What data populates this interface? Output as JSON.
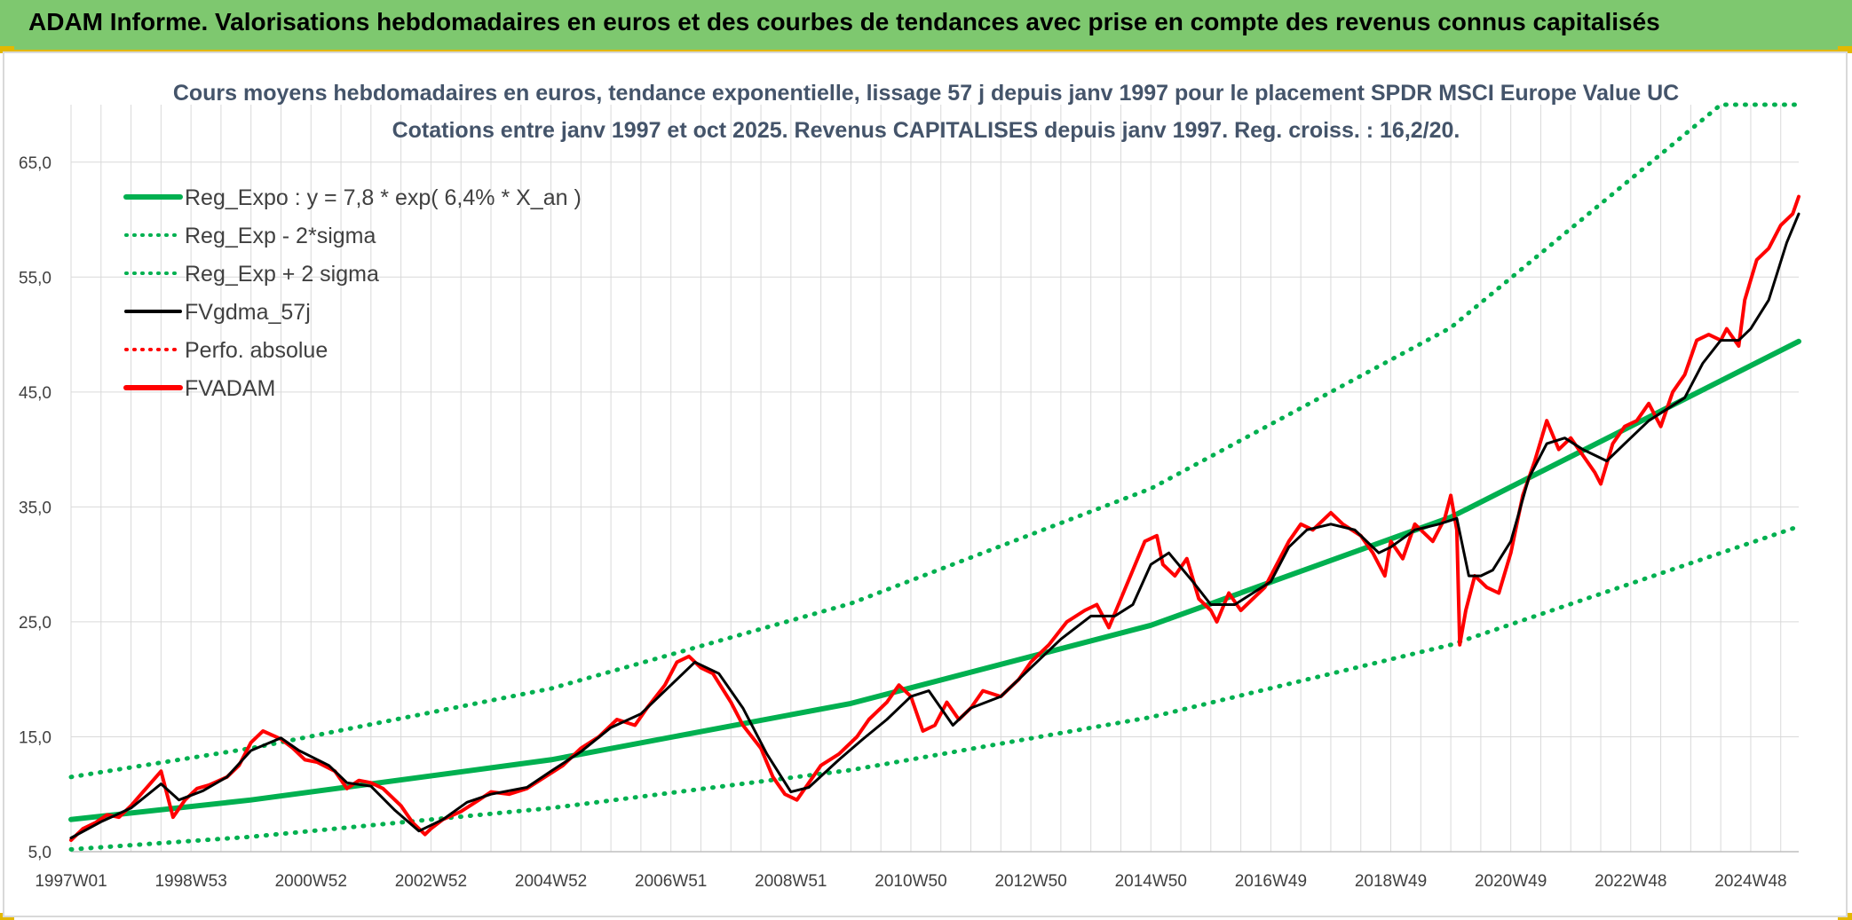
{
  "header": {
    "title": "ADAM Informe. Valorisations hebdomadaires en euros et des courbes de tendances avec prise en compte des revenus connus capitalisés"
  },
  "colors": {
    "header_bg": "#7ec86f",
    "accent_yellow": "#e4b800",
    "trend_green": "#00b050",
    "price_red": "#ff0000",
    "average_black": "#000000",
    "grid": "#d9d9d9",
    "title_text": "#44546a"
  },
  "chart_data": {
    "type": "line",
    "title": "Cours moyens hebdomadaires en euros, tendance exponentielle, lissage 57 j depuis janv 1997 pour le placement SPDR MSCI Europe Value UC",
    "subtitle": "Cotations entre janv 1997 et oct 2025. Revenus CAPITALISES depuis janv 1997. Reg. croiss. : 16,2/20.",
    "xlabel": "",
    "ylabel": "",
    "x_range": [
      1997.0,
      2025.8
    ],
    "ylim": [
      5,
      70
    ],
    "y_ticks": [
      "5,0",
      "15,0",
      "25,0",
      "35,0",
      "45,0",
      "55,0",
      "65,0"
    ],
    "x_ticks": [
      "1997W01",
      "1998W53",
      "2000W52",
      "2002W52",
      "2004W52",
      "2006W51",
      "2008W51",
      "2010W50",
      "2012W50",
      "2014W50",
      "2016W49",
      "2018W49",
      "2020W49",
      "2022W48",
      "2024W48"
    ],
    "x_tick_years": [
      1997.0,
      1999.0,
      2001.0,
      2003.0,
      2005.0,
      2007.0,
      2009.0,
      2011.0,
      2013.0,
      2015.0,
      2017.0,
      2019.0,
      2021.0,
      2023.0,
      2025.0
    ],
    "grid": "vertical and horizontal",
    "legend_position": "top-left",
    "regression": {
      "a": 7.8,
      "rate": 0.064
    },
    "series": [
      {
        "name": "Reg_Expo : y = 7,8 * exp( 6,4% *  X_an )",
        "style": "solid",
        "color": "#00b050",
        "x": [
          1997.0,
          2000.0,
          2005.0,
          2010.0,
          2015.0,
          2020.0,
          2025.8
        ],
        "values": [
          7.8,
          9.5,
          13.0,
          17.9,
          24.7,
          34.1,
          49.4
        ]
      },
      {
        "name": "Reg_Exp - 2*sigma",
        "style": "dotted",
        "color": "#00b050",
        "x": [
          1997.0,
          2000.0,
          2005.0,
          2010.0,
          2015.0,
          2020.0,
          2025.8
        ],
        "values": [
          5.2,
          6.3,
          8.8,
          12.1,
          16.7,
          23.0,
          33.3
        ]
      },
      {
        "name": "Reg_Exp + 2 sigma",
        "style": "dotted",
        "color": "#00b050",
        "x": [
          1997.0,
          2000.0,
          2005.0,
          2010.0,
          2015.0,
          2020.0,
          2024.5,
          2025.8
        ],
        "values": [
          11.5,
          14.0,
          19.2,
          26.6,
          36.6,
          50.6,
          70.0,
          70.0
        ]
      },
      {
        "name": "FVgdma_57j",
        "style": "solid",
        "color": "#000000",
        "x": [
          1997.0,
          1997.5,
          1998.0,
          1998.5,
          1998.8,
          1999.2,
          1999.6,
          2000.0,
          2000.5,
          2000.8,
          2001.3,
          2001.6,
          2002.0,
          2002.4,
          2002.8,
          2003.2,
          2003.6,
          2004.0,
          2004.6,
          2005.0,
          2005.5,
          2006.0,
          2006.5,
          2007.0,
          2007.4,
          2007.8,
          2008.2,
          2008.6,
          2009.0,
          2009.3,
          2009.8,
          2010.2,
          2010.6,
          2011.0,
          2011.3,
          2011.7,
          2012.0,
          2012.5,
          2013.0,
          2013.5,
          2014.0,
          2014.4,
          2014.7,
          2015.0,
          2015.3,
          2015.7,
          2016.0,
          2016.4,
          2016.7,
          2017.0,
          2017.3,
          2017.6,
          2018.0,
          2018.4,
          2018.8,
          2019.0,
          2019.4,
          2019.8,
          2020.1,
          2020.3,
          2020.5,
          2020.7,
          2021.0,
          2021.3,
          2021.6,
          2021.9,
          2022.2,
          2022.6,
          2022.9,
          2023.3,
          2023.6,
          2023.9,
          2024.2,
          2024.5,
          2024.8,
          2025.0,
          2025.3,
          2025.6,
          2025.8
        ],
        "values": [
          6.2,
          7.6,
          8.8,
          10.9,
          9.5,
          10.3,
          11.5,
          13.8,
          14.9,
          13.8,
          12.5,
          11.0,
          10.7,
          8.6,
          6.8,
          7.8,
          9.3,
          10.0,
          10.6,
          12.0,
          13.7,
          15.8,
          17.0,
          19.5,
          21.5,
          20.5,
          17.5,
          13.5,
          10.2,
          10.6,
          13.0,
          14.8,
          16.5,
          18.5,
          19.0,
          16.0,
          17.5,
          18.5,
          21.0,
          23.5,
          25.5,
          25.5,
          26.5,
          30.0,
          31.0,
          28.5,
          26.5,
          26.5,
          27.5,
          28.5,
          31.5,
          33.0,
          33.5,
          33.0,
          31.0,
          31.5,
          33.0,
          33.5,
          34.0,
          29.0,
          29.0,
          29.5,
          32.0,
          37.5,
          40.5,
          41.0,
          40.0,
          39.0,
          40.5,
          42.5,
          43.5,
          44.5,
          47.5,
          49.5,
          49.5,
          50.5,
          53.0,
          58.0,
          60.5
        ]
      },
      {
        "name": "Perfo. absolue",
        "style": "dotted",
        "color": "#ff0000",
        "x": [],
        "values": []
      },
      {
        "name": "FVADAM",
        "style": "solid",
        "color": "#ff0000",
        "x": [
          1997.0,
          1997.2,
          1997.4,
          1997.6,
          1997.8,
          1998.0,
          1998.2,
          1998.5,
          1998.7,
          1998.9,
          1999.1,
          1999.3,
          1999.6,
          1999.8,
          2000.0,
          2000.2,
          2000.5,
          2000.7,
          2000.9,
          2001.1,
          2001.4,
          2001.6,
          2001.8,
          2002.0,
          2002.2,
          2002.5,
          2002.7,
          2002.9,
          2003.0,
          2003.2,
          2003.5,
          2003.8,
          2004.0,
          2004.3,
          2004.6,
          2004.9,
          2005.2,
          2005.5,
          2005.8,
          2006.1,
          2006.4,
          2006.6,
          2006.9,
          2007.1,
          2007.3,
          2007.5,
          2007.7,
          2008.0,
          2008.2,
          2008.5,
          2008.7,
          2008.9,
          2009.1,
          2009.3,
          2009.5,
          2009.8,
          2010.1,
          2010.3,
          2010.6,
          2010.8,
          2011.0,
          2011.2,
          2011.4,
          2011.6,
          2011.8,
          2012.0,
          2012.2,
          2012.5,
          2012.8,
          2013.0,
          2013.3,
          2013.6,
          2013.9,
          2014.1,
          2014.3,
          2014.5,
          2014.7,
          2014.9,
          2015.1,
          2015.2,
          2015.4,
          2015.6,
          2015.8,
          2016.0,
          2016.1,
          2016.3,
          2016.5,
          2016.7,
          2016.9,
          2017.1,
          2017.3,
          2017.5,
          2017.7,
          2018.0,
          2018.2,
          2018.5,
          2018.7,
          2018.9,
          2019.0,
          2019.2,
          2019.4,
          2019.7,
          2019.9,
          2020.0,
          2020.1,
          2020.15,
          2020.25,
          2020.4,
          2020.6,
          2020.8,
          2021.0,
          2021.2,
          2021.4,
          2021.6,
          2021.8,
          2022.0,
          2022.2,
          2022.4,
          2022.5,
          2022.7,
          2022.9,
          2023.1,
          2023.3,
          2023.5,
          2023.7,
          2023.9,
          2024.1,
          2024.3,
          2024.5,
          2024.6,
          2024.8,
          2024.9,
          2025.1,
          2025.3,
          2025.5,
          2025.7,
          2025.8
        ],
        "values": [
          6.0,
          7.0,
          7.5,
          8.2,
          8.0,
          9.0,
          10.2,
          12.0,
          8.0,
          9.5,
          10.5,
          10.8,
          11.5,
          12.5,
          14.5,
          15.5,
          14.8,
          14.0,
          13.0,
          12.8,
          12.0,
          10.5,
          11.2,
          11.0,
          10.5,
          9.0,
          7.5,
          6.5,
          7.0,
          7.8,
          8.5,
          9.5,
          10.2,
          10.0,
          10.5,
          11.5,
          12.5,
          14.0,
          15.0,
          16.5,
          16.0,
          17.5,
          19.5,
          21.5,
          22.0,
          21.0,
          20.5,
          18.0,
          16.0,
          14.0,
          11.5,
          10.0,
          9.5,
          11.0,
          12.5,
          13.5,
          15.0,
          16.5,
          18.0,
          19.5,
          18.5,
          15.5,
          16.0,
          18.0,
          16.5,
          17.5,
          19.0,
          18.5,
          20.0,
          21.5,
          23.0,
          25.0,
          26.0,
          26.5,
          24.5,
          27.0,
          29.5,
          32.0,
          32.5,
          30.0,
          29.0,
          30.5,
          27.0,
          26.0,
          25.0,
          27.5,
          26.0,
          27.0,
          28.0,
          30.0,
          32.0,
          33.5,
          33.0,
          34.5,
          33.5,
          32.5,
          31.0,
          29.0,
          32.0,
          30.5,
          33.5,
          32.0,
          34.0,
          36.0,
          33.0,
          23.0,
          26.0,
          29.0,
          28.0,
          27.5,
          31.0,
          36.0,
          39.0,
          42.5,
          40.0,
          41.0,
          39.5,
          38.0,
          37.0,
          40.5,
          42.0,
          42.5,
          44.0,
          42.0,
          45.0,
          46.5,
          49.5,
          50.0,
          49.5,
          50.5,
          49.0,
          53.0,
          56.5,
          57.5,
          59.5,
          60.5,
          62.0
        ]
      }
    ]
  }
}
